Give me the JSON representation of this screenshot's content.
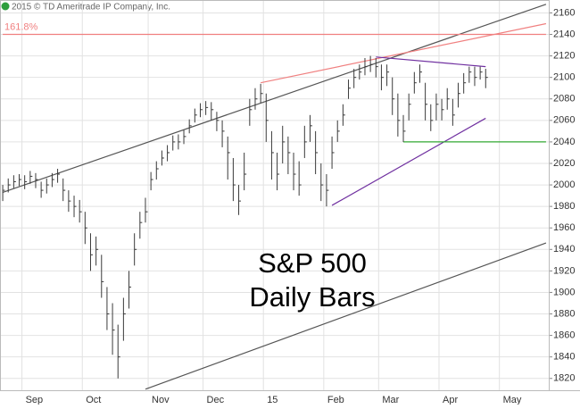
{
  "chart_data": {
    "type": "ohlc",
    "copyright": "2015 © TD Ameritrade IP Company, Inc.",
    "title_lines": [
      "S&P 500",
      "Daily Bars"
    ],
    "categories": [
      null,
      null,
      null,
      null,
      "Sep",
      null,
      null,
      null,
      null,
      null,
      null,
      null,
      null,
      null,
      null,
      "Oct",
      null,
      null,
      null,
      null,
      null,
      null,
      null,
      null,
      null,
      null,
      null,
      "Nov",
      null,
      null,
      null,
      null,
      null,
      null,
      null,
      null,
      null,
      "Dec",
      null,
      null,
      null,
      null,
      null,
      null,
      null,
      null,
      null,
      null,
      "15",
      null,
      null,
      null,
      null,
      null,
      null,
      null,
      null,
      null,
      null,
      "Feb",
      null,
      null,
      null,
      null,
      null,
      null,
      null,
      null,
      null,
      "Mar",
      null,
      null,
      null,
      null,
      null,
      null,
      null,
      null,
      null,
      null,
      "Apr",
      null,
      null,
      null,
      null,
      null,
      null,
      null,
      null,
      null,
      null,
      "May",
      null,
      null,
      null,
      null,
      null,
      null,
      null,
      null
    ],
    "color": "#3a3a3a",
    "high": [
      2000,
      2006,
      2009,
      2010,
      2009,
      2013,
      2011,
      2003,
      2006,
      2011,
      2015,
      2006,
      1995,
      1990,
      1986,
      1975,
      1955,
      1952,
      1935,
      1905,
      1890,
      1870,
      1895,
      1920,
      1955,
      1975,
      1988,
      2012,
      2022,
      2032,
      2037,
      2046,
      2047,
      2051,
      2061,
      2071,
      2076,
      2078,
      2077,
      2068,
      2060,
      2045,
      2025,
      2000,
      2030,
      2080,
      2090,
      2094,
      2085,
      2050,
      2030,
      2055,
      2045,
      2030,
      2022,
      2055,
      2065,
      2050,
      2020,
      2010,
      2045,
      2060,
      2075,
      2098,
      2108,
      2112,
      2118,
      2120,
      2118,
      2112,
      2112,
      2100,
      2085,
      2065,
      2085,
      2105,
      2112,
      2095,
      2075,
      2085,
      2080,
      2090,
      2080,
      2095,
      2104,
      2110,
      2110,
      2110,
      2108,
      null,
      null,
      null,
      null,
      null,
      null,
      null,
      null,
      null,
      null,
      null
    ],
    "low": [
      1985,
      1993,
      1997,
      1999,
      1996,
      2001,
      1997,
      1988,
      1992,
      1998,
      2002,
      1985,
      1975,
      1970,
      1965,
      1945,
      1920,
      1925,
      1895,
      1865,
      1842,
      1820,
      1855,
      1885,
      1925,
      1950,
      1965,
      1995,
      2005,
      2018,
      2022,
      2032,
      2033,
      2038,
      2048,
      2058,
      2063,
      2065,
      2060,
      2050,
      2035,
      2005,
      1985,
      1972,
      1995,
      2055,
      2070,
      2076,
      2040,
      2005,
      1995,
      2020,
      2010,
      1995,
      1990,
      2025,
      2040,
      2010,
      1985,
      1980,
      2015,
      2040,
      2055,
      2080,
      2090,
      2098,
      2102,
      2105,
      2100,
      2088,
      2092,
      2065,
      2045,
      2040,
      2060,
      2085,
      2095,
      2060,
      2050,
      2060,
      2060,
      2070,
      2055,
      2072,
      2085,
      2095,
      2092,
      2098,
      2090,
      null,
      null,
      null,
      null,
      null,
      null,
      null,
      null,
      null,
      null,
      null
    ],
    "close": [
      1995,
      2000,
      2003,
      2005,
      2003,
      2008,
      2005,
      1995,
      2000,
      2005,
      2010,
      1995,
      1985,
      1980,
      1975,
      1960,
      1935,
      1940,
      1910,
      1880,
      1865,
      1840,
      1880,
      1905,
      1940,
      1965,
      1975,
      2005,
      2015,
      2025,
      2030,
      2040,
      2040,
      2045,
      2055,
      2065,
      2070,
      2072,
      2070,
      2060,
      2050,
      2030,
      2000,
      1985,
      2010,
      2070,
      2080,
      2085,
      2060,
      2030,
      2010,
      2040,
      2030,
      2010,
      2000,
      2040,
      2055,
      2030,
      2000,
      1995,
      2030,
      2050,
      2065,
      2090,
      2100,
      2105,
      2110,
      2112,
      2110,
      2100,
      2105,
      2080,
      2060,
      2050,
      2075,
      2095,
      2105,
      2075,
      2060,
      2075,
      2070,
      2080,
      2065,
      2085,
      2095,
      2105,
      2100,
      2105,
      2100,
      null,
      null,
      null,
      null,
      null,
      null,
      null,
      null,
      null,
      null,
      null
    ],
    "ylim": [
      1809,
      2172
    ],
    "yticks": [
      1820,
      1840,
      1860,
      1880,
      1900,
      1920,
      1940,
      1960,
      1980,
      2000,
      2020,
      2040,
      2060,
      2080,
      2100,
      2120,
      2140,
      2160
    ],
    "grid": true,
    "lines": [
      {
        "color": "#555555",
        "points": [
          [
            0,
            1993
          ],
          [
            99,
            2168
          ]
        ]
      },
      {
        "color": "#555555",
        "points": [
          [
            26,
            1810
          ],
          [
            99,
            1946
          ]
        ]
      },
      {
        "color": "#f08080",
        "points": [
          [
            47,
            2095
          ],
          [
            99,
            2150
          ]
        ]
      },
      {
        "color": "#f08080",
        "label": "161.8%",
        "points": [
          [
            0,
            2140
          ],
          [
            99,
            2140
          ]
        ]
      },
      {
        "color": "#7030a0",
        "points": [
          [
            68,
            2119
          ],
          [
            88,
            2110
          ]
        ]
      },
      {
        "color": "#7030a0",
        "points": [
          [
            60,
            1981
          ],
          [
            88,
            2062
          ]
        ]
      },
      {
        "color": "#33aa33",
        "points": [
          [
            73,
            2040
          ],
          [
            99,
            2040
          ]
        ]
      }
    ]
  }
}
